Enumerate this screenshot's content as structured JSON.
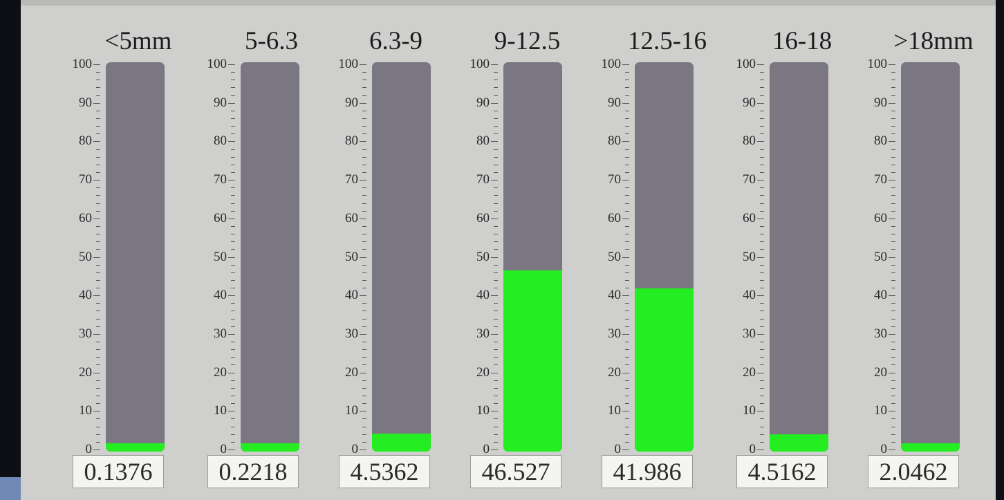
{
  "panel": {
    "gauges": [
      {
        "label": "<5mm",
        "value_text": "0.1376",
        "fill_percent": 0.1376
      },
      {
        "label": "5-6.3",
        "value_text": "0.2218",
        "fill_percent": 0.2218
      },
      {
        "label": "6.3-9",
        "value_text": "4.5362",
        "fill_percent": 4.5362
      },
      {
        "label": "9-12.5",
        "value_text": "46.527",
        "fill_percent": 46.527
      },
      {
        "label": "12.5-16",
        "value_text": "41.986",
        "fill_percent": 41.986
      },
      {
        "label": "16-18",
        "value_text": "4.5162",
        "fill_percent": 4.5162
      },
      {
        "label": ">18mm",
        "value_text": "2.0462",
        "fill_percent": 2.0462
      }
    ],
    "scale": {
      "min": 0,
      "max": 100,
      "labels": [
        "100",
        "90",
        "80",
        "70",
        "60",
        "50",
        "40",
        "30",
        "20",
        "10",
        "0"
      ]
    },
    "colors": {
      "fill": "#24ee22",
      "tube": "#7a7682",
      "panel": "#cfcfcd"
    }
  }
}
